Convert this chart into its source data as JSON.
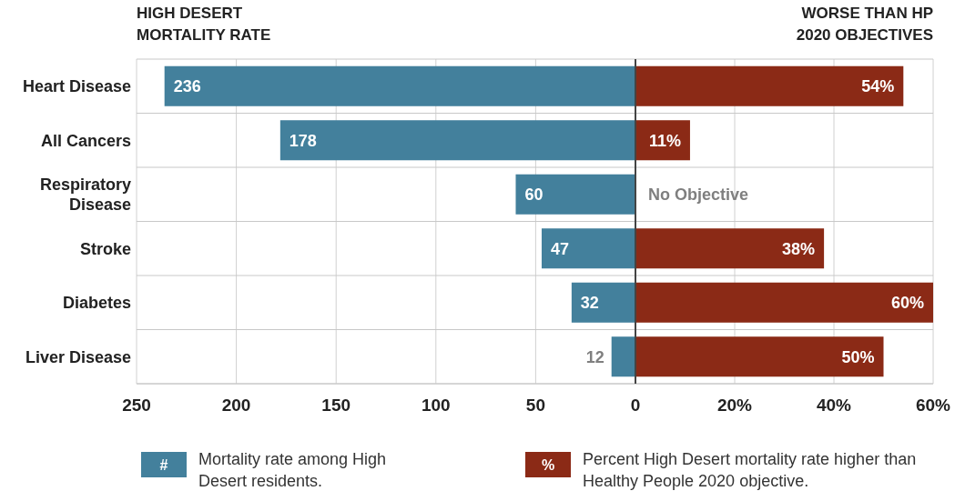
{
  "chart_data": [
    {
      "type": "bar",
      "orientation": "horizontal",
      "title": "HIGH DESERT MORTALITY RATE",
      "categories": [
        "Heart Disease",
        "All Cancers",
        "Respiratory Disease",
        "Stroke",
        "Diabetes",
        "Liver Disease"
      ],
      "series": [
        {
          "name": "Mortality rate among High Desert residents.",
          "color": "#43809c",
          "values": [
            236,
            178,
            60,
            47,
            32,
            12
          ]
        }
      ],
      "data_labels": true,
      "xlim": [
        250,
        0
      ],
      "xticks": [
        250,
        200,
        150,
        100,
        50,
        0
      ],
      "grid": true,
      "legend": "bottom",
      "annotations": [
        "#"
      ]
    },
    {
      "type": "bar",
      "orientation": "horizontal",
      "title": "WORSE THAN HP 2020 OBJECTIVES",
      "categories": [
        "Heart Disease",
        "All Cancers",
        "Respiratory Disease",
        "Stroke",
        "Diabetes",
        "Liver Disease"
      ],
      "series": [
        {
          "name": "Percent High Desert mortality rate higher than Healthy People 2020 objective.",
          "color": "#8b2a16",
          "values": [
            54,
            11,
            null,
            38,
            60,
            50
          ]
        }
      ],
      "value_labels": [
        "54%",
        "11%",
        "No Objective",
        "38%",
        "60%",
        "50%"
      ],
      "xlim": [
        0,
        60
      ],
      "xticks": [
        {
          "value": 0,
          "label": null
        },
        {
          "value": 20,
          "label": "20%"
        },
        {
          "value": 40,
          "label": "40%"
        },
        {
          "value": 60,
          "label": "60%"
        }
      ],
      "grid": true,
      "tick_labels": "x",
      "legend": "bottom",
      "annotations": [
        "%"
      ]
    }
  ]
}
